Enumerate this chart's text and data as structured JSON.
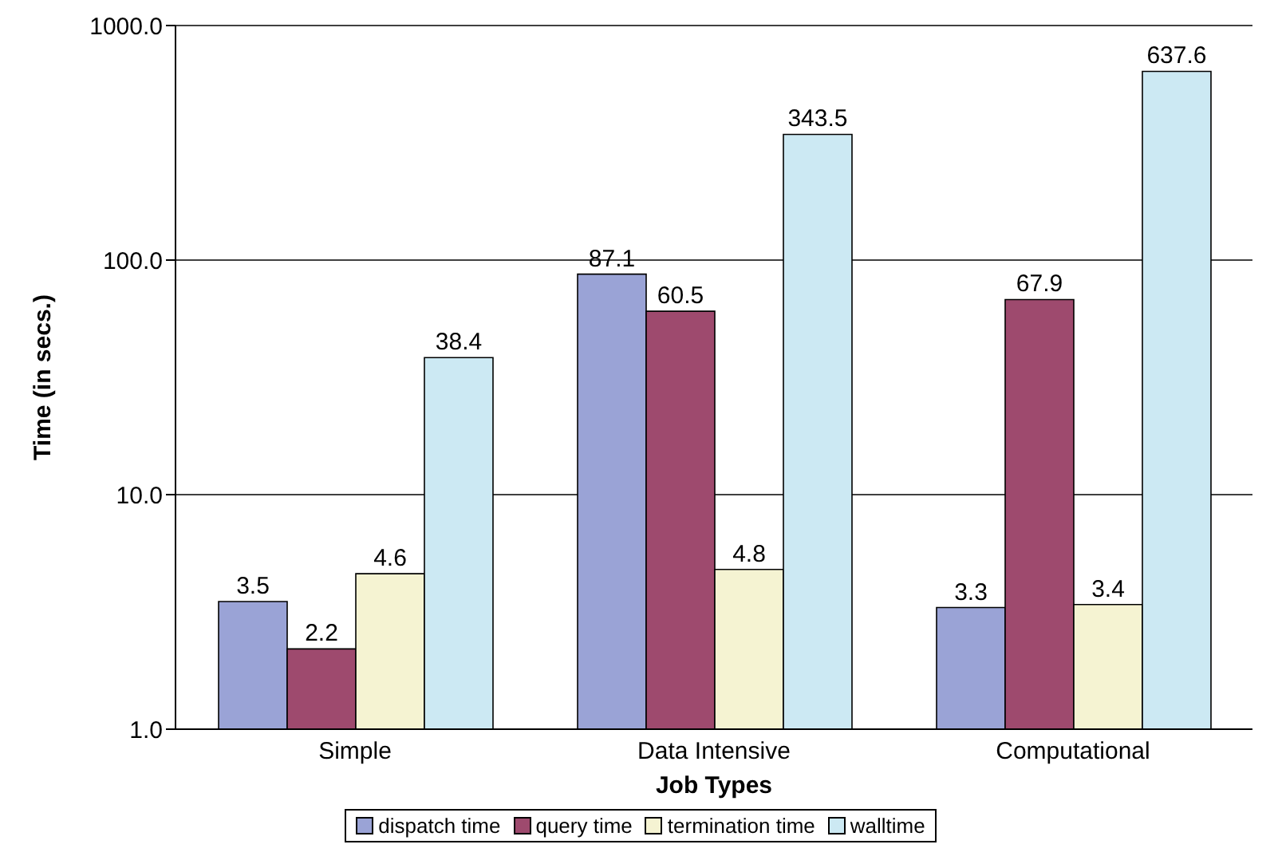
{
  "chart_data": {
    "type": "bar",
    "xlabel": "Job Types",
    "ylabel": "Time (in secs.)",
    "categories": [
      "Simple",
      "Data Intensive",
      "Computational"
    ],
    "series": [
      {
        "name": "dispatch time",
        "color": "#9aa3d6",
        "values": [
          3.5,
          87.1,
          3.3
        ]
      },
      {
        "name": "query time",
        "color": "#9e4a6e",
        "values": [
          2.2,
          60.5,
          67.9
        ]
      },
      {
        "name": "termination time",
        "color": "#f5f3d2",
        "values": [
          4.6,
          4.8,
          3.4
        ]
      },
      {
        "name": "walltime",
        "color": "#cce9f3",
        "values": [
          38.4,
          343.5,
          637.6
        ]
      }
    ],
    "log": true,
    "ylim": [
      1,
      1000
    ],
    "yticks": [
      {
        "value": 1,
        "label": "1.0"
      },
      {
        "value": 10,
        "label": "10.0"
      },
      {
        "value": 100,
        "label": "100.0"
      },
      {
        "value": 1000,
        "label": "1000.0"
      }
    ],
    "grid": "y",
    "legend": "bottom",
    "data_labels": true
  }
}
